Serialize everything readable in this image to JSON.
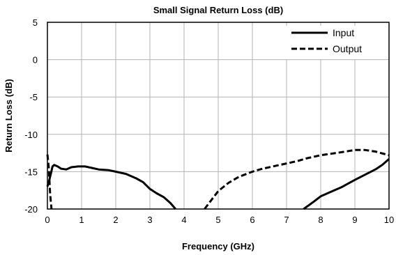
{
  "chart_data": {
    "type": "line",
    "title": "Small Signal Return Loss (dB)",
    "xlabel": "Frequency (GHz)",
    "ylabel": "Return Loss (dB)",
    "xlim": [
      0,
      10
    ],
    "ylim": [
      -20,
      5
    ],
    "xticks": [
      "0",
      "1",
      "2",
      "3",
      "4",
      "5",
      "6",
      "7",
      "8",
      "9",
      "10"
    ],
    "yticks": [
      "5",
      "0",
      "-5",
      "-10",
      "-15",
      "-20"
    ],
    "grid": true,
    "legend_position": "top-right",
    "series": [
      {
        "name": "Input",
        "style": "solid",
        "color": "#000000",
        "segments": [
          [
            [
              0.0,
              -17.0
            ],
            [
              0.05,
              -16.2
            ],
            [
              0.1,
              -15.3
            ],
            [
              0.15,
              -14.3
            ],
            [
              0.2,
              -14.1
            ],
            [
              0.3,
              -14.3
            ],
            [
              0.4,
              -14.6
            ],
            [
              0.55,
              -14.7
            ],
            [
              0.7,
              -14.4
            ],
            [
              0.9,
              -14.3
            ],
            [
              1.1,
              -14.3
            ],
            [
              1.3,
              -14.5
            ],
            [
              1.5,
              -14.7
            ],
            [
              1.8,
              -14.8
            ],
            [
              2.0,
              -15.0
            ],
            [
              2.3,
              -15.3
            ],
            [
              2.6,
              -15.9
            ],
            [
              2.8,
              -16.4
            ],
            [
              3.0,
              -17.3
            ],
            [
              3.2,
              -17.9
            ],
            [
              3.4,
              -18.4
            ],
            [
              3.6,
              -19.2
            ],
            [
              3.75,
              -20.0
            ]
          ],
          [
            [
              7.5,
              -20.0
            ],
            [
              7.8,
              -19.0
            ],
            [
              8.0,
              -18.3
            ],
            [
              8.3,
              -17.7
            ],
            [
              8.6,
              -17.1
            ],
            [
              9.0,
              -16.1
            ],
            [
              9.3,
              -15.4
            ],
            [
              9.6,
              -14.7
            ],
            [
              9.8,
              -14.1
            ],
            [
              10.0,
              -13.3
            ]
          ]
        ]
      },
      {
        "name": "Output",
        "style": "dashed",
        "color": "#000000",
        "segments": [
          [
            [
              0.0,
              -12.7
            ],
            [
              0.04,
              -14.5
            ],
            [
              0.08,
              -18.0
            ],
            [
              0.12,
              -20.0
            ]
          ],
          [
            [
              4.6,
              -20.0
            ],
            [
              4.8,
              -18.8
            ],
            [
              5.0,
              -17.6
            ],
            [
              5.3,
              -16.5
            ],
            [
              5.6,
              -15.7
            ],
            [
              6.0,
              -15.0
            ],
            [
              6.3,
              -14.6
            ],
            [
              6.6,
              -14.3
            ],
            [
              7.0,
              -13.9
            ],
            [
              7.3,
              -13.6
            ],
            [
              7.6,
              -13.2
            ],
            [
              8.0,
              -12.8
            ],
            [
              8.3,
              -12.6
            ],
            [
              8.6,
              -12.4
            ],
            [
              9.0,
              -12.1
            ],
            [
              9.3,
              -12.1
            ],
            [
              9.6,
              -12.3
            ],
            [
              10.0,
              -12.8
            ]
          ]
        ]
      }
    ]
  }
}
